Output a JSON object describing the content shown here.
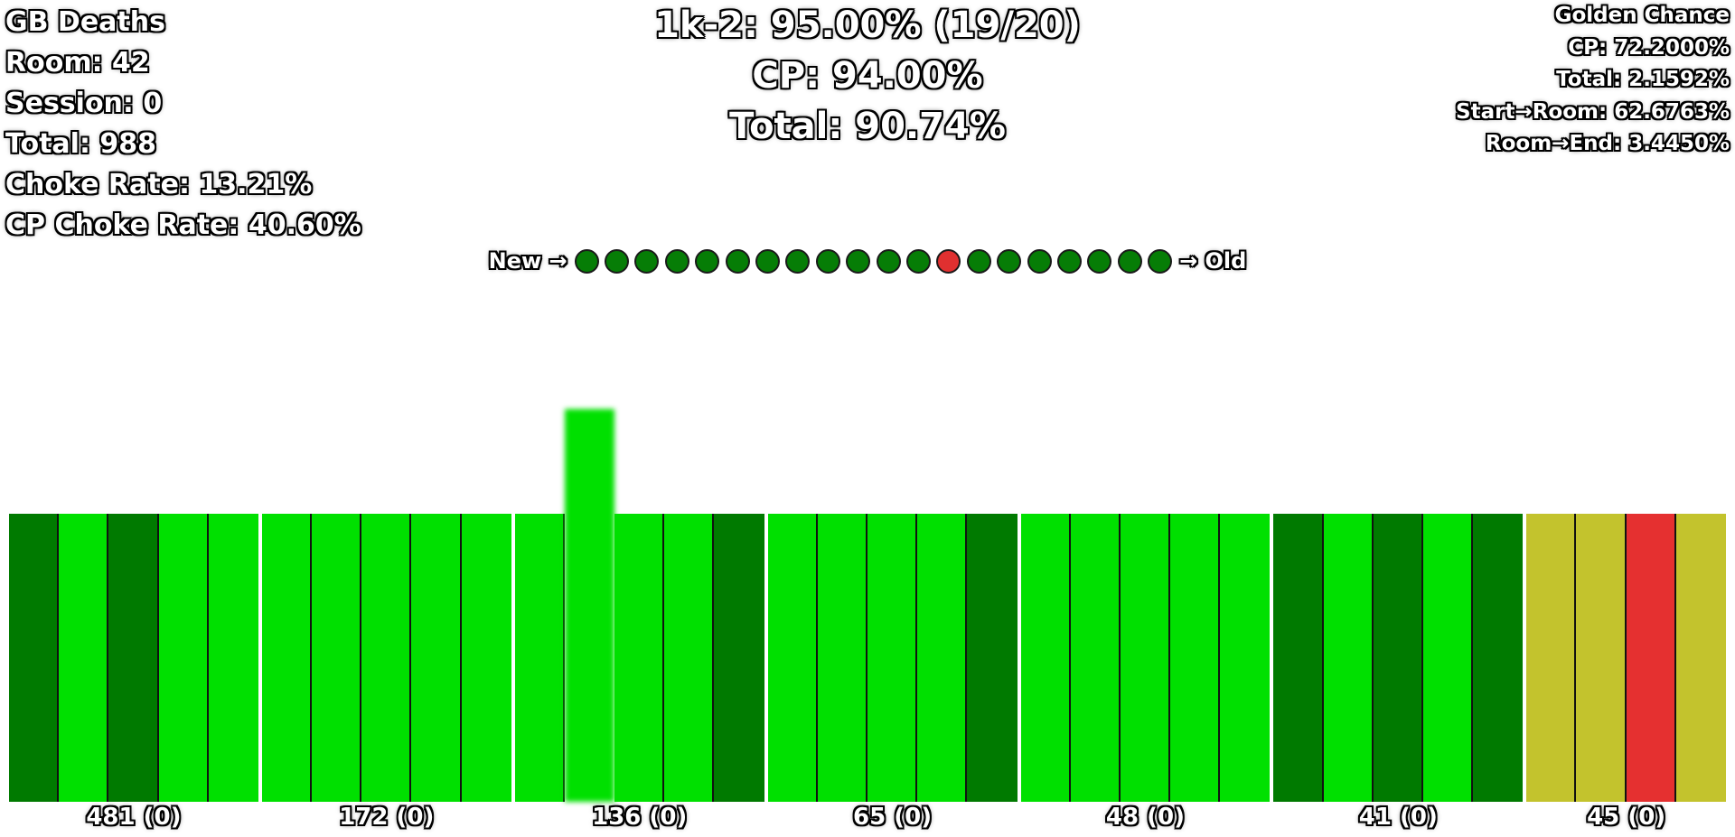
{
  "stats_left": {
    "title": "GB Deaths",
    "room": "Room: 42",
    "session": "Session: 0",
    "total": "Total: 988",
    "choke_rate": "Choke Rate: 13.21%",
    "cp_choke_rate": "CP Choke Rate: 40.60%"
  },
  "center_header": {
    "room_rate": "1k-2: 95.00% (19/20)",
    "cp_rate": "CP: 94.00%",
    "total_rate": "Total: 90.74%"
  },
  "golden_chance": {
    "title": "Golden Chance",
    "cp": "CP: 72.2000%",
    "total": "Total: 2.1592%",
    "start_to_room": "Start→Room: 62.6763%",
    "room_to_end": "Room→End: 3.4450%"
  },
  "history": {
    "new_label": "New →",
    "old_label": "→ Old",
    "attempts": [
      "success",
      "success",
      "success",
      "success",
      "success",
      "success",
      "success",
      "success",
      "success",
      "success",
      "success",
      "success",
      "fail",
      "success",
      "success",
      "success",
      "success",
      "success",
      "success",
      "success"
    ]
  },
  "colors": {
    "success": "#067d06",
    "fail": "#e03030",
    "bright_green": "#00e000",
    "dark_green": "#007a00",
    "yellow": "#c3c32d",
    "red": "#e53030"
  },
  "checkpoints": [
    {
      "label": "481 (0)",
      "rooms": [
        "dark_green",
        "bright_green",
        "dark_green",
        "bright_green",
        "bright_green"
      ]
    },
    {
      "label": "172 (0)",
      "rooms": [
        "bright_green",
        "bright_green",
        "bright_green",
        "bright_green",
        "bright_green"
      ]
    },
    {
      "label": "136 (0)",
      "rooms": [
        "bright_green",
        "bright_green",
        "bright_green",
        "bright_green",
        "dark_green"
      ],
      "current_room_index": 1
    },
    {
      "label": "65 (0)",
      "rooms": [
        "bright_green",
        "bright_green",
        "bright_green",
        "bright_green",
        "dark_green"
      ]
    },
    {
      "label": "48 (0)",
      "rooms": [
        "bright_green",
        "bright_green",
        "bright_green",
        "bright_green",
        "bright_green"
      ]
    },
    {
      "label": "41 (0)",
      "rooms": [
        "dark_green",
        "bright_green",
        "dark_green",
        "bright_green",
        "dark_green"
      ]
    },
    {
      "label": "45 (0)",
      "rooms": [
        "yellow",
        "yellow",
        "red",
        "yellow"
      ]
    }
  ]
}
